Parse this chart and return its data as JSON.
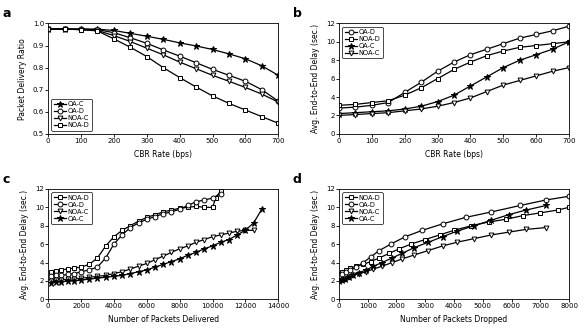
{
  "panel_a": {
    "title": "a",
    "xlabel": "CBR Rate (bps)",
    "ylabel": "Packet Delivery Ratio",
    "xlim": [
      0,
      700
    ],
    "ylim": [
      0.5,
      1.0
    ],
    "yticks": [
      0.5,
      0.6,
      0.7,
      0.8,
      0.9,
      1.0
    ],
    "xticks": [
      0,
      100,
      200,
      300,
      400,
      500,
      600,
      700
    ],
    "series": {
      "OA-C": {
        "x": [
          0,
          50,
          100,
          150,
          200,
          250,
          300,
          350,
          400,
          450,
          500,
          550,
          600,
          650,
          700
        ],
        "y": [
          0.975,
          0.975,
          0.975,
          0.974,
          0.968,
          0.955,
          0.942,
          0.928,
          0.912,
          0.898,
          0.882,
          0.862,
          0.84,
          0.808,
          0.765
        ],
        "marker": "*",
        "ls": "-"
      },
      "OA-D": {
        "x": [
          0,
          50,
          100,
          150,
          200,
          250,
          300,
          350,
          400,
          450,
          500,
          550,
          600,
          650,
          700
        ],
        "y": [
          0.975,
          0.974,
          0.973,
          0.972,
          0.958,
          0.935,
          0.91,
          0.88,
          0.852,
          0.822,
          0.792,
          0.765,
          0.738,
          0.7,
          0.648
        ],
        "marker": "o",
        "ls": "-"
      },
      "NOA-C": {
        "x": [
          0,
          50,
          100,
          150,
          200,
          250,
          300,
          350,
          400,
          450,
          500,
          550,
          600,
          650,
          700
        ],
        "y": [
          0.975,
          0.974,
          0.972,
          0.968,
          0.945,
          0.918,
          0.888,
          0.858,
          0.825,
          0.795,
          0.765,
          0.738,
          0.71,
          0.68,
          0.644
        ],
        "marker": "v",
        "ls": "-"
      },
      "NOA-D": {
        "x": [
          0,
          50,
          100,
          150,
          200,
          250,
          300,
          350,
          400,
          450,
          500,
          550,
          600,
          650,
          700
        ],
        "y": [
          0.975,
          0.974,
          0.972,
          0.966,
          0.93,
          0.892,
          0.85,
          0.8,
          0.755,
          0.712,
          0.672,
          0.638,
          0.608,
          0.578,
          0.548
        ],
        "marker": "s",
        "ls": "-"
      }
    },
    "legend_order": [
      "OA-C",
      "OA-D",
      "NOA-C",
      "NOA-D"
    ],
    "legend_loc": "lower left"
  },
  "panel_b": {
    "title": "b",
    "xlabel": "CBR Rate (bps)",
    "ylabel": "Avg. End-to-End Delay (sec.)",
    "xlim": [
      0,
      700
    ],
    "ylim": [
      0,
      12
    ],
    "yticks": [
      0,
      2,
      4,
      6,
      8,
      10,
      12
    ],
    "xticks": [
      0,
      100,
      200,
      300,
      400,
      500,
      600,
      700
    ],
    "series": {
      "OA-D": {
        "x": [
          0,
          50,
          100,
          150,
          200,
          250,
          300,
          350,
          400,
          450,
          500,
          550,
          600,
          650,
          700
        ],
        "y": [
          2.8,
          2.9,
          3.1,
          3.4,
          4.5,
          5.6,
          6.8,
          7.8,
          8.6,
          9.2,
          9.8,
          10.4,
          10.8,
          11.2,
          11.7
        ],
        "marker": "o",
        "ls": "-"
      },
      "NOA-D": {
        "x": [
          0,
          50,
          100,
          150,
          200,
          250,
          300,
          350,
          400,
          450,
          500,
          550,
          600,
          650,
          700
        ],
        "y": [
          3.1,
          3.2,
          3.4,
          3.6,
          4.2,
          5.0,
          6.0,
          7.0,
          7.8,
          8.5,
          9.0,
          9.4,
          9.6,
          9.8,
          10.0
        ],
        "marker": "s",
        "ls": "-"
      },
      "OA-C": {
        "x": [
          0,
          50,
          100,
          150,
          200,
          250,
          300,
          350,
          400,
          450,
          500,
          550,
          600,
          650,
          700
        ],
        "y": [
          2.2,
          2.3,
          2.4,
          2.5,
          2.7,
          3.0,
          3.5,
          4.2,
          5.2,
          6.2,
          7.2,
          8.0,
          8.6,
          9.2,
          10.0
        ],
        "marker": "*",
        "ls": "-"
      },
      "NOA-C": {
        "x": [
          0,
          50,
          100,
          150,
          200,
          250,
          300,
          350,
          400,
          450,
          500,
          550,
          600,
          650,
          700
        ],
        "y": [
          2.0,
          2.1,
          2.2,
          2.3,
          2.5,
          2.7,
          3.0,
          3.4,
          3.9,
          4.6,
          5.3,
          5.8,
          6.3,
          6.8,
          7.2
        ],
        "marker": "v",
        "ls": "-"
      }
    },
    "legend_order": [
      "OA-D",
      "NOA-D",
      "OA-C",
      "NOA-C"
    ],
    "legend_loc": "upper left"
  },
  "panel_c": {
    "title": "c",
    "xlabel": "Number of Packets Delivered",
    "ylabel": "Avg. End-to-End Delay (sec.)",
    "xlim": [
      0,
      14000
    ],
    "ylim": [
      0,
      12
    ],
    "yticks": [
      0,
      2,
      4,
      6,
      8,
      10,
      12
    ],
    "xticks": [
      0,
      2000,
      4000,
      6000,
      8000,
      10000,
      12000,
      14000
    ],
    "series": {
      "NOA-D": {
        "x": [
          200,
          500,
          800,
          1200,
          1600,
          2000,
          2500,
          3000,
          3500,
          4000,
          4500,
          5000,
          5500,
          6000,
          6500,
          7000,
          7500,
          8000,
          8500,
          9000,
          9500,
          10000,
          10200,
          10500
        ],
        "y": [
          3.0,
          3.1,
          3.2,
          3.3,
          3.4,
          3.5,
          3.8,
          4.5,
          5.8,
          6.8,
          7.5,
          8.0,
          8.5,
          8.9,
          9.2,
          9.5,
          9.7,
          9.9,
          10.0,
          10.1,
          10.0,
          10.0,
          11.0,
          11.8
        ],
        "marker": "s",
        "ls": "-"
      },
      "OA-D": {
        "x": [
          200,
          500,
          800,
          1200,
          1600,
          2000,
          2500,
          3000,
          3500,
          4000,
          4500,
          5000,
          5500,
          6000,
          6500,
          7000,
          7500,
          8000,
          8500,
          9000,
          9500,
          10000,
          10500
        ],
        "y": [
          2.5,
          2.6,
          2.6,
          2.7,
          2.8,
          3.0,
          3.2,
          3.5,
          4.5,
          6.0,
          7.0,
          7.8,
          8.3,
          8.7,
          9.0,
          9.3,
          9.5,
          9.8,
          10.2,
          10.6,
          10.8,
          11.0,
          11.5
        ],
        "marker": "o",
        "ls": "-"
      },
      "NOA-C": {
        "x": [
          200,
          500,
          800,
          1200,
          1600,
          2000,
          2500,
          3000,
          3500,
          4000,
          4500,
          5000,
          5500,
          6000,
          6500,
          7000,
          7500,
          8000,
          8500,
          9000,
          9500,
          10000,
          10500,
          11000,
          11500,
          12000,
          12500
        ],
        "y": [
          2.0,
          2.1,
          2.1,
          2.2,
          2.2,
          2.3,
          2.4,
          2.5,
          2.6,
          2.8,
          3.0,
          3.3,
          3.6,
          3.9,
          4.3,
          4.7,
          5.1,
          5.5,
          5.8,
          6.2,
          6.5,
          6.8,
          7.0,
          7.2,
          7.4,
          7.5,
          7.5
        ],
        "marker": "v",
        "ls": "-"
      },
      "OA-C": {
        "x": [
          200,
          500,
          800,
          1200,
          1600,
          2000,
          2500,
          3000,
          3500,
          4000,
          4500,
          5000,
          5500,
          6000,
          6500,
          7000,
          7500,
          8000,
          8500,
          9000,
          9500,
          10000,
          10500,
          11000,
          11500,
          12000,
          12500,
          13000
        ],
        "y": [
          1.8,
          1.9,
          1.9,
          2.0,
          2.0,
          2.1,
          2.2,
          2.3,
          2.4,
          2.5,
          2.6,
          2.8,
          3.0,
          3.2,
          3.5,
          3.8,
          4.1,
          4.4,
          4.8,
          5.1,
          5.5,
          5.8,
          6.2,
          6.5,
          7.0,
          7.5,
          8.3,
          9.8
        ],
        "marker": "*",
        "ls": "-"
      }
    },
    "legend_order": [
      "NOA-D",
      "OA-D",
      "NOA-C",
      "OA-C"
    ],
    "legend_loc": "upper left"
  },
  "panel_d": {
    "title": "d",
    "xlabel": "Number of Packets Dropped",
    "ylabel": "Avg. End-to-End Delay (sec.)",
    "xlim": [
      0,
      8000
    ],
    "ylim": [
      0,
      12
    ],
    "yticks": [
      0,
      2,
      4,
      6,
      8,
      10,
      12
    ],
    "xticks": [
      0,
      1000,
      2000,
      3000,
      4000,
      5000,
      6000,
      7000,
      8000
    ],
    "series": {
      "NOA-D": {
        "x": [
          0,
          100,
          250,
          400,
          600,
          850,
          1100,
          1400,
          1750,
          2100,
          2500,
          3000,
          3500,
          4000,
          4600,
          5200,
          5800,
          6400,
          7000,
          7600,
          8000
        ],
        "y": [
          2.8,
          3.0,
          3.2,
          3.4,
          3.6,
          3.8,
          4.1,
          4.5,
          5.0,
          5.5,
          6.0,
          6.5,
          7.0,
          7.5,
          8.0,
          8.4,
          8.7,
          9.1,
          9.4,
          9.7,
          10.0
        ],
        "marker": "s",
        "ls": "-"
      },
      "OA-D": {
        "x": [
          0,
          100,
          250,
          400,
          600,
          850,
          1100,
          1400,
          1800,
          2300,
          2900,
          3600,
          4400,
          5300,
          6300,
          7200,
          8000
        ],
        "y": [
          2.5,
          2.7,
          3.0,
          3.2,
          3.5,
          4.0,
          4.6,
          5.3,
          6.0,
          6.8,
          7.5,
          8.2,
          8.9,
          9.5,
          10.2,
          10.8,
          11.2
        ],
        "marker": "o",
        "ls": "-"
      },
      "NOA-C": {
        "x": [
          0,
          100,
          200,
          350,
          500,
          700,
          950,
          1200,
          1500,
          1850,
          2200,
          2600,
          3100,
          3600,
          4100,
          4700,
          5300,
          5900,
          6500,
          7200
        ],
        "y": [
          2.0,
          2.1,
          2.2,
          2.4,
          2.6,
          2.8,
          3.0,
          3.3,
          3.6,
          4.0,
          4.4,
          4.8,
          5.3,
          5.8,
          6.2,
          6.6,
          7.0,
          7.3,
          7.6,
          7.8
        ],
        "marker": "v",
        "ls": "-"
      },
      "OA-C": {
        "x": [
          0,
          100,
          200,
          350,
          500,
          700,
          950,
          1200,
          1500,
          1850,
          2200,
          2600,
          3100,
          3600,
          4100,
          4700,
          5300,
          5900,
          6500,
          7200
        ],
        "y": [
          2.0,
          2.1,
          2.2,
          2.4,
          2.6,
          2.9,
          3.2,
          3.6,
          4.0,
          4.5,
          5.0,
          5.6,
          6.2,
          6.8,
          7.4,
          8.0,
          8.6,
          9.2,
          9.7,
          10.2
        ],
        "marker": "*",
        "ls": "-"
      }
    },
    "legend_order": [
      "NOA-D",
      "OA-D",
      "NOA-C",
      "OA-C"
    ],
    "legend_loc": "upper left"
  },
  "linewidth": 0.9,
  "markersize_star": 5,
  "markersize_other": 3.5
}
